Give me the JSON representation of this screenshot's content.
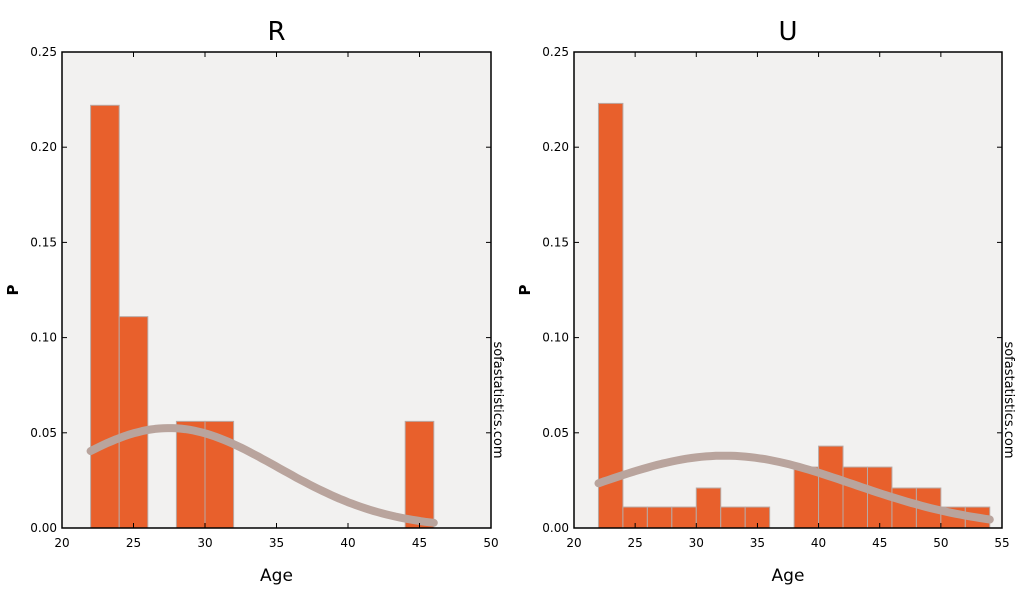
{
  "chart_data": [
    {
      "type": "bar",
      "title": "R",
      "xlabel": "Age",
      "ylabel": "P",
      "watermark": "sofastatistics.com",
      "xlim": [
        20,
        50
      ],
      "ylim": [
        0,
        0.25
      ],
      "xticks": [
        20,
        25,
        30,
        35,
        40,
        45,
        50
      ],
      "xtick_labels": [
        "20",
        "25",
        "30",
        "35",
        "40",
        "45",
        "50"
      ],
      "yticks": [
        0,
        0.05,
        0.1,
        0.15,
        0.2,
        0.25
      ],
      "ytick_labels": [
        "0.00",
        "0.05",
        "0.10",
        "0.15",
        "0.20",
        "0.25"
      ],
      "bins": [
        {
          "x0": 22,
          "x1": 24,
          "p": 0.222
        },
        {
          "x0": 24,
          "x1": 26,
          "p": 0.111
        },
        {
          "x0": 28,
          "x1": 30,
          "p": 0.056
        },
        {
          "x0": 30,
          "x1": 32,
          "p": 0.056
        },
        {
          "x0": 44,
          "x1": 46,
          "p": 0.056
        }
      ],
      "curve": {
        "x_from": 22,
        "x_to": 46,
        "mean": 27.5,
        "sd": 7.6
      },
      "bar_color": "#e8602c",
      "bar_edge": "#b9a9a4",
      "curve_color": "#b9a49d",
      "plot_bg": "#f2f1f0"
    },
    {
      "type": "bar",
      "title": "U",
      "xlabel": "Age",
      "ylabel": "P",
      "watermark": "sofastatistics.com",
      "xlim": [
        20,
        55
      ],
      "ylim": [
        0,
        0.25
      ],
      "xticks": [
        20,
        25,
        30,
        35,
        40,
        45,
        50,
        55
      ],
      "xtick_labels": [
        "20",
        "25",
        "30",
        "35",
        "40",
        "45",
        "50",
        "55"
      ],
      "yticks": [
        0,
        0.05,
        0.1,
        0.15,
        0.2,
        0.25
      ],
      "ytick_labels": [
        "0.00",
        "0.05",
        "0.10",
        "0.15",
        "0.20",
        "0.25"
      ],
      "bins": [
        {
          "x0": 22,
          "x1": 24,
          "p": 0.223
        },
        {
          "x0": 24,
          "x1": 26,
          "p": 0.011
        },
        {
          "x0": 26,
          "x1": 28,
          "p": 0.011
        },
        {
          "x0": 28,
          "x1": 30,
          "p": 0.011
        },
        {
          "x0": 30,
          "x1": 32,
          "p": 0.021
        },
        {
          "x0": 32,
          "x1": 34,
          "p": 0.011
        },
        {
          "x0": 34,
          "x1": 36,
          "p": 0.011
        },
        {
          "x0": 38,
          "x1": 40,
          "p": 0.032
        },
        {
          "x0": 40,
          "x1": 42,
          "p": 0.043
        },
        {
          "x0": 42,
          "x1": 44,
          "p": 0.032
        },
        {
          "x0": 44,
          "x1": 46,
          "p": 0.032
        },
        {
          "x0": 46,
          "x1": 48,
          "p": 0.021
        },
        {
          "x0": 48,
          "x1": 50,
          "p": 0.021
        },
        {
          "x0": 50,
          "x1": 52,
          "p": 0.011
        },
        {
          "x0": 52,
          "x1": 54,
          "p": 0.011
        }
      ],
      "curve": {
        "x_from": 22,
        "x_to": 54,
        "mean": 32.3,
        "sd": 10.5
      },
      "bar_color": "#e8602c",
      "bar_edge": "#b9a9a4",
      "curve_color": "#b9a49d",
      "plot_bg": "#f2f1f0"
    }
  ]
}
